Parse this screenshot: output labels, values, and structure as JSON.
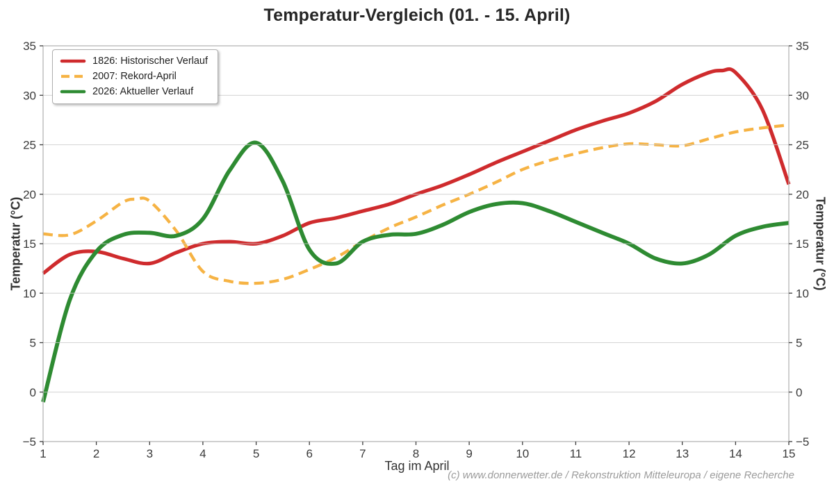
{
  "chart_data": {
    "type": "line",
    "title": "Temperatur-Vergleich (01. - 15. April)",
    "xlabel": "Tag im April",
    "ylabel_left": "Temperatur (°C)",
    "ylabel_right": "Temperatur (°C)",
    "footer": "(c) www.donnerwetter.de / Rekonstruktion Mitteleuropa / eigene Recherche",
    "xlim": [
      1,
      15
    ],
    "ylim": [
      -5,
      35
    ],
    "xticks": [
      1,
      2,
      3,
      4,
      5,
      6,
      7,
      8,
      9,
      10,
      11,
      12,
      13,
      14,
      15
    ],
    "yticks": [
      -5,
      0,
      5,
      10,
      15,
      20,
      25,
      30,
      35
    ],
    "grid": "horizontal",
    "legend_position": "top-left",
    "series": [
      {
        "name": "1826: Historischer Verlauf",
        "color": "#cf2b2d",
        "style": "solid",
        "x": [
          1,
          1.5,
          2,
          2.5,
          3,
          3.5,
          4,
          4.5,
          5,
          5.5,
          6,
          6.5,
          7,
          7.5,
          8,
          8.5,
          9,
          9.5,
          10,
          10.5,
          11,
          11.5,
          12,
          12.5,
          13,
          13.5,
          13.75,
          14,
          14.5,
          15
        ],
        "values": [
          12.0,
          13.9,
          14.2,
          13.5,
          13.0,
          14.1,
          15.0,
          15.2,
          15.0,
          15.8,
          17.1,
          17.6,
          18.3,
          19.0,
          20.0,
          20.9,
          22.0,
          23.2,
          24.3,
          25.4,
          26.5,
          27.4,
          28.2,
          29.4,
          31.1,
          32.3,
          32.5,
          32.3,
          28.6,
          21.0
        ]
      },
      {
        "name": "2007: Rekord-April",
        "color": "#f6b344",
        "style": "dashed",
        "x": [
          1,
          1.5,
          2,
          2.5,
          2.75,
          3,
          3.5,
          4,
          4.5,
          5,
          5.5,
          6,
          6.5,
          7,
          7.5,
          8,
          8.5,
          9,
          9.5,
          10,
          10.5,
          11,
          11.5,
          12,
          12.5,
          13,
          13.5,
          14,
          14.5,
          15
        ],
        "values": [
          16.0,
          15.9,
          17.3,
          19.2,
          19.5,
          19.3,
          16.3,
          12.2,
          11.2,
          11.0,
          11.4,
          12.4,
          13.6,
          15.2,
          16.6,
          17.7,
          18.9,
          20.0,
          21.2,
          22.5,
          23.4,
          24.1,
          24.7,
          25.1,
          25.0,
          24.9,
          25.6,
          26.3,
          26.7,
          27.0
        ]
      },
      {
        "name": "2026: Aktueller Verlauf",
        "color": "#2e8b32",
        "style": "solid",
        "x": [
          1,
          1.5,
          2,
          2.5,
          3,
          3.5,
          4,
          4.5,
          5,
          5.5,
          6,
          6.5,
          7,
          7.5,
          8,
          8.5,
          9,
          9.5,
          10,
          10.5,
          11,
          11.5,
          12,
          12.5,
          13,
          13.5,
          14,
          14.5,
          15
        ],
        "values": [
          -1.0,
          9.3,
          14.2,
          15.9,
          16.1,
          15.8,
          17.5,
          22.4,
          25.2,
          21.3,
          14.4,
          13.0,
          15.2,
          15.9,
          16.0,
          16.9,
          18.2,
          19.0,
          19.1,
          18.3,
          17.2,
          16.1,
          15.0,
          13.5,
          13.0,
          13.9,
          15.8,
          16.7,
          17.1
        ]
      }
    ]
  }
}
